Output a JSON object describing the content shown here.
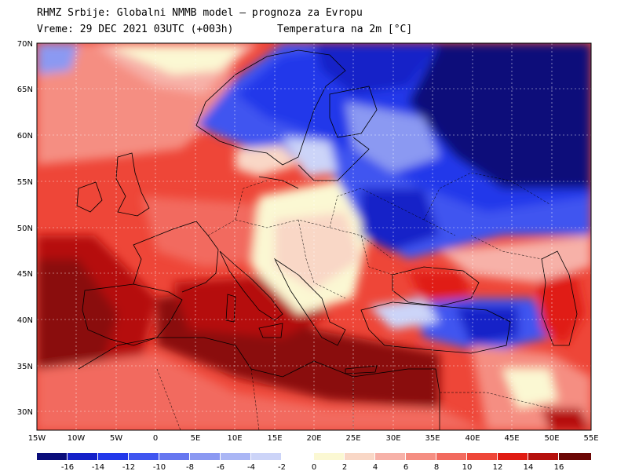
{
  "header": {
    "title": "RHMZ Srbije: Globalni NMMB model — prognoza za Evropu",
    "run": "Vreme: 29 DEC 2021 03UTC (+003h)",
    "parameter": "Temperatura na 2m [°C]"
  },
  "map": {
    "lat_labels": [
      "70N",
      "65N",
      "60N",
      "55N",
      "50N",
      "45N",
      "40N",
      "35N",
      "30N"
    ],
    "lon_labels": [
      "15W",
      "10W",
      "5W",
      "0",
      "5E",
      "10E",
      "15E",
      "20E",
      "25E",
      "30E",
      "35E",
      "40E",
      "45E",
      "50E",
      "55E"
    ],
    "colors": {
      "deep_cold": "#0a1ea0",
      "cold": "#3a55e8",
      "cool": "#a9b5f5",
      "neutral": "#fbf7d6",
      "mild": "#f6b0a4",
      "warm": "#f15a4a",
      "hot": "#d21a12",
      "very_hot": "#8a0f0a"
    }
  },
  "legend": {
    "labels": [
      "-16",
      "-14",
      "-12",
      "-10",
      "-8",
      "-6",
      "-4",
      "-2",
      "0",
      "2",
      "4",
      "6",
      "8",
      "10",
      "12",
      "14",
      "16"
    ],
    "cold_colors": [
      "#0a0d7a",
      "#1420c8",
      "#2238ea",
      "#3f55f0",
      "#6677f0",
      "#8b99f2",
      "#aab6f5",
      "#ccd4f8"
    ],
    "warm_colors": [
      "#fbf8d3",
      "#f9d7c6",
      "#f7b1a8",
      "#f58e82",
      "#f26a5e",
      "#ee4638",
      "#e01b12",
      "#b5100c",
      "#6b0705"
    ]
  }
}
